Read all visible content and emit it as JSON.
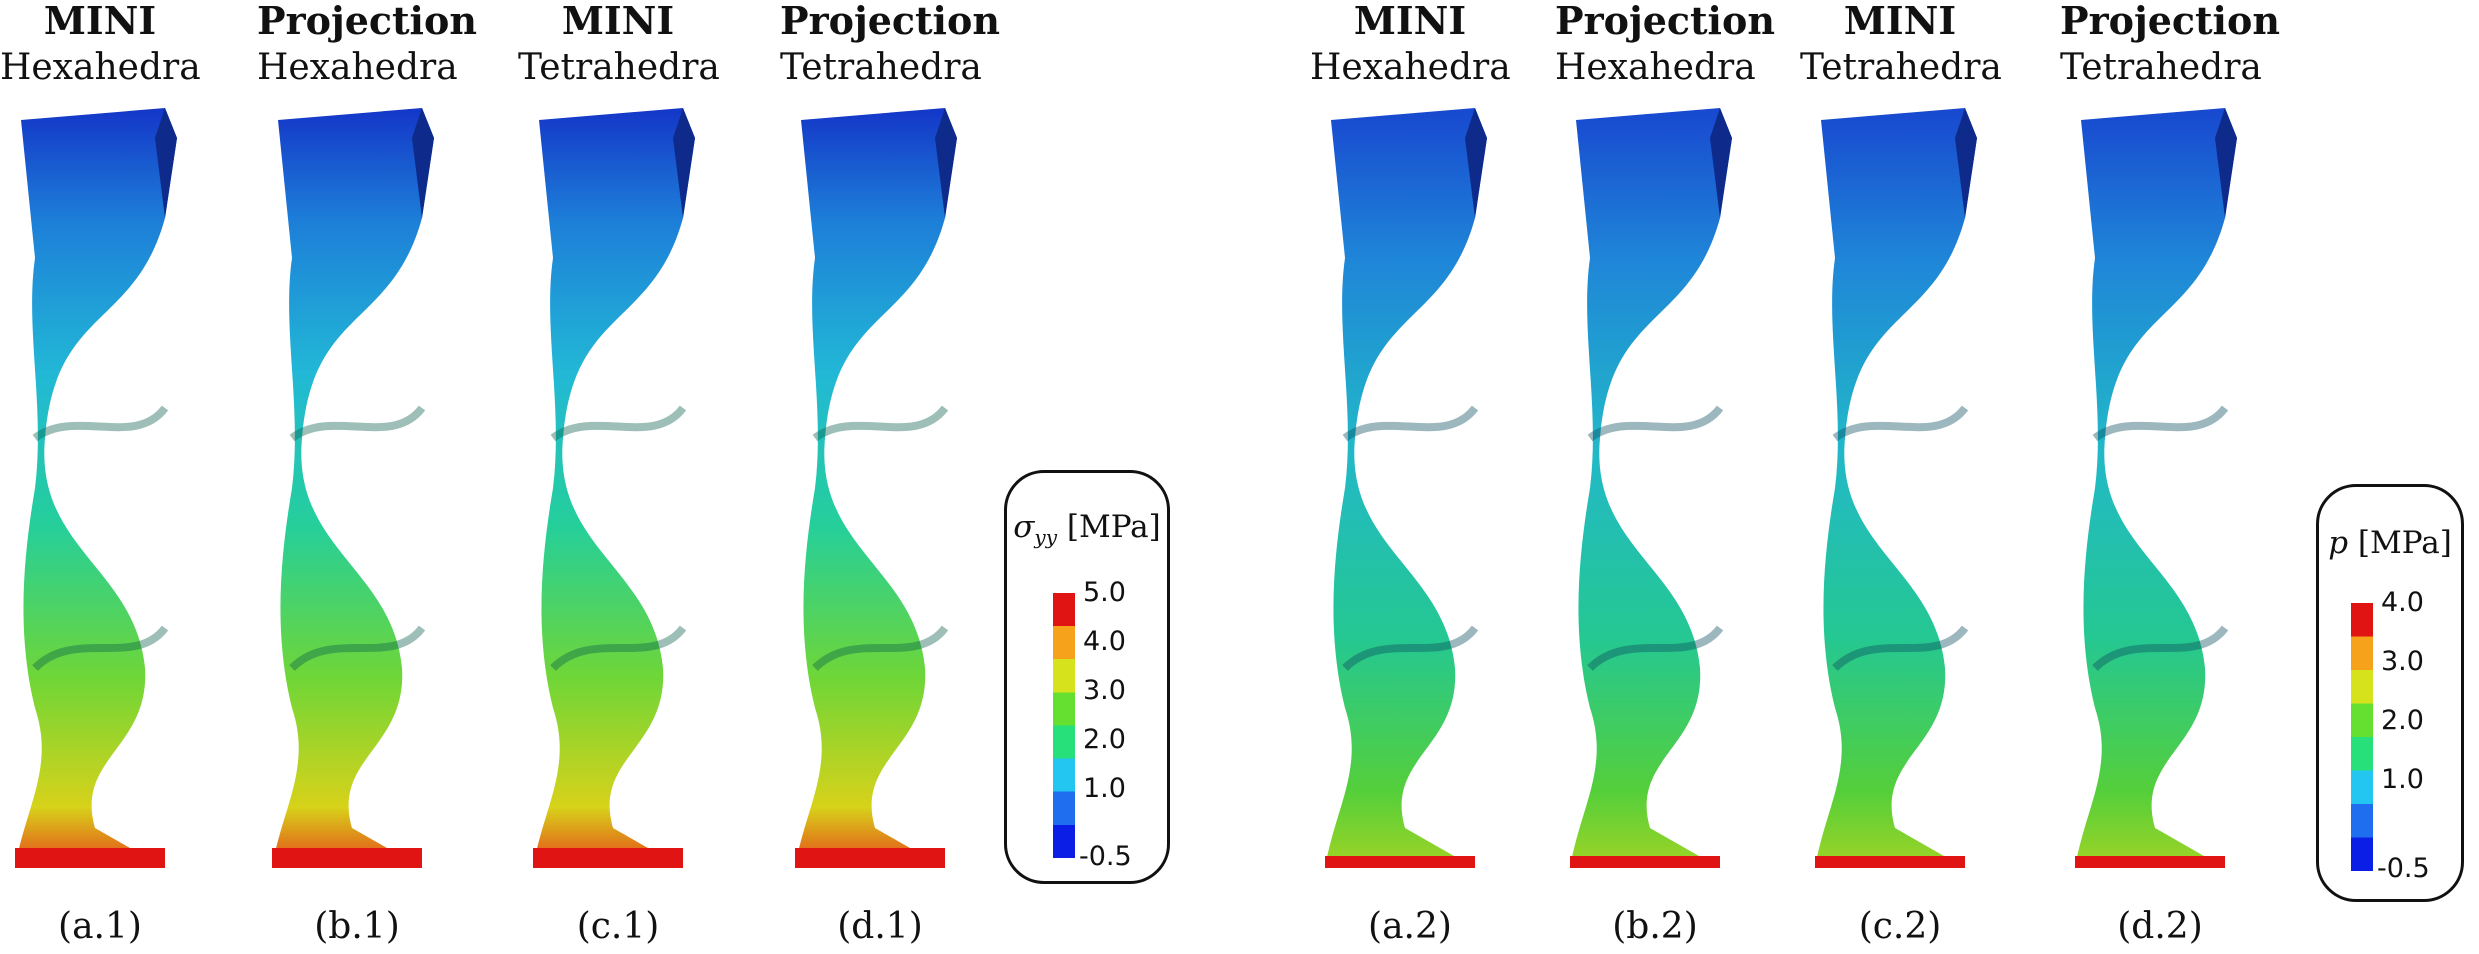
{
  "panels_left": [
    {
      "method": "MINI",
      "mesh": "Hexahedra",
      "caption": "(a.1)"
    },
    {
      "method": "Projection",
      "mesh": "Hexahedra",
      "caption": "(b.1)"
    },
    {
      "method": "MINI",
      "mesh": "Tetrahedra",
      "caption": "(c.1)"
    },
    {
      "method": "Projection",
      "mesh": "Tetrahedra",
      "caption": "(d.1)"
    }
  ],
  "panels_right": [
    {
      "method": "MINI",
      "mesh": "Hexahedra",
      "caption": "(a.2)"
    },
    {
      "method": "Projection",
      "mesh": "Hexahedra",
      "caption": "(b.2)"
    },
    {
      "method": "MINI",
      "mesh": "Tetrahedra",
      "caption": "(c.2)"
    },
    {
      "method": "Projection",
      "mesh": "Tetrahedra",
      "caption": "(d.2)"
    }
  ],
  "legend_left": {
    "symbol": "σ",
    "subscript": "yy",
    "unit": "[MPa]",
    "ticks": [
      "5.0",
      "4.0",
      "3.0",
      "2.0",
      "1.0",
      "-0.5"
    ],
    "colors": [
      "#0a1ee6",
      "#1f6ef0",
      "#22c6f0",
      "#27e07a",
      "#66e030",
      "#d6e21c",
      "#f6a21a",
      "#e11414"
    ]
  },
  "legend_right": {
    "symbol": "p",
    "unit": "[MPa]",
    "ticks": [
      "4.0",
      "3.0",
      "2.0",
      "1.0",
      "-0.5"
    ],
    "colors": [
      "#0a1ee6",
      "#1f6ef0",
      "#22c6f0",
      "#27e07a",
      "#66e030",
      "#d6e21c",
      "#f6a21a",
      "#e11414"
    ]
  }
}
